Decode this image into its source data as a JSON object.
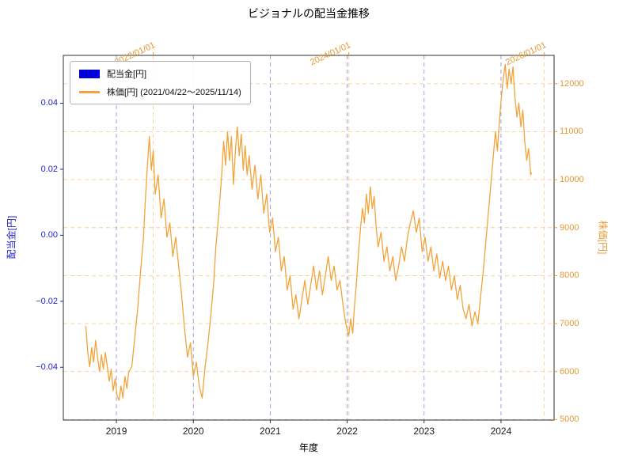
{
  "colors": {
    "dividend_blue": "#0000dd",
    "blue_text": "#2222cc",
    "price_orange": "#f2a43a",
    "orange_text": "#e59a33",
    "grid_blue": "#9393dd",
    "grid_orange": "#f5cf9b",
    "frame": "#2f2f2f",
    "bottom_text": "#1a1a1a"
  },
  "chart_data": {
    "type": "line",
    "title": "ビジョナルの配当金推移",
    "legend": [
      {
        "label": "配当金[円]",
        "marker": "bar"
      },
      {
        "label": "株価[円] (2021/04/22～2025/11/14)",
        "marker": "line"
      }
    ],
    "axes": {
      "bottom": {
        "label": "年度",
        "range": [
          2018.31,
          2024.69
        ],
        "ticks": [
          {
            "label": "2019",
            "value": 2019
          },
          {
            "label": "2020",
            "value": 2020
          },
          {
            "label": "2021",
            "value": 2021
          },
          {
            "label": "2022",
            "value": 2022
          },
          {
            "label": "2023",
            "value": 2023
          },
          {
            "label": "2024",
            "value": 2024
          }
        ]
      },
      "top": {
        "label": "",
        "range": [
          2021.08,
          2026.1
        ],
        "ticks": [
          {
            "label": "2022/01/01",
            "value": 2022.0
          },
          {
            "label": "2024/01/01",
            "value": 2024.0
          },
          {
            "label": "2026/01/01",
            "value": 2026.0
          }
        ]
      },
      "left": {
        "label": "配当金[円]",
        "range": [
          -0.056,
          0.0545
        ],
        "ticks": [
          {
            "label": "0.04",
            "value": 0.04
          },
          {
            "label": "0.02",
            "value": 0.02
          },
          {
            "label": "0.00",
            "value": 0.0
          },
          {
            "label": "−0.02",
            "value": -0.02
          },
          {
            "label": "−0.04",
            "value": -0.04
          }
        ]
      },
      "right": {
        "label": "株価[円]",
        "range": [
          4990,
          12590
        ],
        "ticks": [
          {
            "label": "12000",
            "value": 12000
          },
          {
            "label": "11000",
            "value": 11000
          },
          {
            "label": "10000",
            "value": 10000
          },
          {
            "label": "9000",
            "value": 9000
          },
          {
            "label": "8000",
            "value": 8000
          },
          {
            "label": "7000",
            "value": 7000
          },
          {
            "label": "6000",
            "value": 6000
          },
          {
            "label": "5000",
            "value": 5000
          }
        ]
      }
    },
    "grid": {
      "vertical_blue": "year ticks",
      "vertical_orange": "date ticks",
      "horizontal_orange": "price ticks",
      "style": "dashed"
    },
    "series": [
      {
        "name": "配当金[円]",
        "type": "bar",
        "axis": "left",
        "x_axis": "bottom",
        "years": [
          2019,
          2020,
          2021,
          2022,
          2023,
          2024
        ],
        "values": [
          0,
          0,
          0,
          0,
          0,
          0
        ]
      },
      {
        "name": "株価[円] (2021/04/22～2025/11/14)",
        "type": "line",
        "axis": "right",
        "x_axis": "top",
        "points": [
          [
            2021.31,
            6950
          ],
          [
            2021.33,
            6400
          ],
          [
            2021.35,
            6100
          ],
          [
            2021.37,
            6500
          ],
          [
            2021.39,
            6200
          ],
          [
            2021.41,
            6650
          ],
          [
            2021.43,
            6300
          ],
          [
            2021.45,
            6000
          ],
          [
            2021.47,
            6350
          ],
          [
            2021.49,
            6050
          ],
          [
            2021.51,
            6400
          ],
          [
            2021.53,
            6100
          ],
          [
            2021.55,
            5800
          ],
          [
            2021.57,
            6050
          ],
          [
            2021.59,
            5600
          ],
          [
            2021.61,
            5850
          ],
          [
            2021.63,
            5500
          ],
          [
            2021.65,
            5400
          ],
          [
            2021.67,
            5700
          ],
          [
            2021.69,
            5450
          ],
          [
            2021.71,
            5900
          ],
          [
            2021.73,
            5650
          ],
          [
            2021.75,
            6000
          ],
          [
            2021.78,
            6100
          ],
          [
            2021.81,
            6700
          ],
          [
            2021.84,
            7300
          ],
          [
            2021.87,
            8100
          ],
          [
            2021.9,
            8800
          ],
          [
            2021.92,
            9600
          ],
          [
            2021.94,
            10300
          ],
          [
            2021.96,
            10900
          ],
          [
            2021.98,
            10200
          ],
          [
            2022.0,
            10600
          ],
          [
            2022.02,
            9700
          ],
          [
            2022.05,
            10100
          ],
          [
            2022.08,
            9200
          ],
          [
            2022.11,
            9600
          ],
          [
            2022.14,
            8800
          ],
          [
            2022.17,
            9100
          ],
          [
            2022.2,
            8400
          ],
          [
            2022.23,
            8800
          ],
          [
            2022.26,
            8200
          ],
          [
            2022.29,
            7600
          ],
          [
            2022.32,
            6900
          ],
          [
            2022.35,
            6300
          ],
          [
            2022.38,
            6600
          ],
          [
            2022.41,
            5900
          ],
          [
            2022.44,
            6200
          ],
          [
            2022.47,
            5700
          ],
          [
            2022.5,
            5450
          ],
          [
            2022.53,
            6100
          ],
          [
            2022.56,
            6600
          ],
          [
            2022.59,
            7200
          ],
          [
            2022.62,
            7900
          ],
          [
            2022.64,
            8600
          ],
          [
            2022.67,
            9300
          ],
          [
            2022.7,
            10100
          ],
          [
            2022.72,
            10800
          ],
          [
            2022.74,
            10300
          ],
          [
            2022.76,
            11000
          ],
          [
            2022.78,
            10400
          ],
          [
            2022.8,
            10900
          ],
          [
            2022.82,
            9900
          ],
          [
            2022.84,
            10600
          ],
          [
            2022.86,
            11100
          ],
          [
            2022.88,
            10500
          ],
          [
            2022.9,
            10950
          ],
          [
            2022.92,
            10200
          ],
          [
            2022.94,
            10700
          ],
          [
            2022.96,
            10100
          ],
          [
            2022.98,
            10500
          ],
          [
            2023.01,
            9800
          ],
          [
            2023.04,
            10300
          ],
          [
            2023.07,
            9600
          ],
          [
            2023.1,
            10100
          ],
          [
            2023.13,
            9300
          ],
          [
            2023.16,
            9700
          ],
          [
            2023.19,
            8900
          ],
          [
            2023.22,
            9200
          ],
          [
            2023.25,
            8500
          ],
          [
            2023.28,
            8800
          ],
          [
            2023.31,
            8100
          ],
          [
            2023.34,
            8400
          ],
          [
            2023.37,
            7700
          ],
          [
            2023.4,
            8000
          ],
          [
            2023.43,
            7300
          ],
          [
            2023.46,
            7600
          ],
          [
            2023.49,
            7100
          ],
          [
            2023.52,
            7500
          ],
          [
            2023.55,
            7900
          ],
          [
            2023.58,
            7400
          ],
          [
            2023.61,
            7800
          ],
          [
            2023.64,
            8200
          ],
          [
            2023.67,
            7700
          ],
          [
            2023.7,
            8100
          ],
          [
            2023.73,
            7600
          ],
          [
            2023.76,
            8000
          ],
          [
            2023.79,
            8400
          ],
          [
            2023.82,
            7900
          ],
          [
            2023.85,
            8200
          ],
          [
            2023.88,
            7700
          ],
          [
            2023.91,
            7900
          ],
          [
            2023.94,
            7400
          ],
          [
            2023.97,
            7000
          ],
          [
            2024.0,
            6750
          ],
          [
            2024.02,
            7100
          ],
          [
            2024.04,
            6800
          ],
          [
            2024.06,
            7400
          ],
          [
            2024.08,
            7900
          ],
          [
            2024.1,
            8500
          ],
          [
            2024.12,
            9000
          ],
          [
            2024.14,
            9400
          ],
          [
            2024.16,
            9100
          ],
          [
            2024.18,
            9700
          ],
          [
            2024.2,
            9300
          ],
          [
            2024.22,
            9850
          ],
          [
            2024.24,
            9400
          ],
          [
            2024.26,
            9650
          ],
          [
            2024.28,
            9000
          ],
          [
            2024.3,
            8600
          ],
          [
            2024.33,
            8900
          ],
          [
            2024.36,
            8300
          ],
          [
            2024.39,
            8600
          ],
          [
            2024.42,
            8100
          ],
          [
            2024.45,
            8400
          ],
          [
            2024.48,
            7900
          ],
          [
            2024.51,
            8200
          ],
          [
            2024.54,
            8600
          ],
          [
            2024.57,
            8300
          ],
          [
            2024.6,
            8800
          ],
          [
            2024.63,
            9100
          ],
          [
            2024.66,
            9350
          ],
          [
            2024.69,
            8900
          ],
          [
            2024.72,
            9200
          ],
          [
            2024.75,
            8500
          ],
          [
            2024.78,
            8800
          ],
          [
            2024.81,
            8300
          ],
          [
            2024.84,
            8600
          ],
          [
            2024.87,
            8100
          ],
          [
            2024.9,
            8450
          ],
          [
            2024.93,
            7950
          ],
          [
            2024.96,
            8300
          ],
          [
            2024.99,
            7900
          ],
          [
            2025.02,
            8200
          ],
          [
            2025.05,
            7700
          ],
          [
            2025.08,
            8000
          ],
          [
            2025.11,
            7500
          ],
          [
            2025.14,
            7800
          ],
          [
            2025.17,
            7300
          ],
          [
            2025.2,
            7100
          ],
          [
            2025.23,
            7400
          ],
          [
            2025.26,
            6950
          ],
          [
            2025.29,
            7250
          ],
          [
            2025.32,
            7000
          ],
          [
            2025.35,
            7600
          ],
          [
            2025.38,
            8200
          ],
          [
            2025.41,
            8900
          ],
          [
            2025.44,
            9600
          ],
          [
            2025.47,
            10300
          ],
          [
            2025.5,
            11000
          ],
          [
            2025.52,
            10600
          ],
          [
            2025.54,
            11200
          ],
          [
            2025.56,
            11700
          ],
          [
            2025.58,
            12100
          ],
          [
            2025.6,
            12400
          ],
          [
            2025.62,
            11900
          ],
          [
            2025.64,
            12300
          ],
          [
            2025.66,
            12000
          ],
          [
            2025.68,
            12350
          ],
          [
            2025.7,
            11700
          ],
          [
            2025.72,
            11300
          ],
          [
            2025.74,
            11600
          ],
          [
            2025.76,
            11100
          ],
          [
            2025.78,
            11450
          ],
          [
            2025.8,
            10800
          ],
          [
            2025.82,
            10400
          ],
          [
            2025.84,
            10650
          ],
          [
            2025.86,
            10100
          ],
          [
            2025.87,
            10150
          ]
        ]
      }
    ]
  }
}
